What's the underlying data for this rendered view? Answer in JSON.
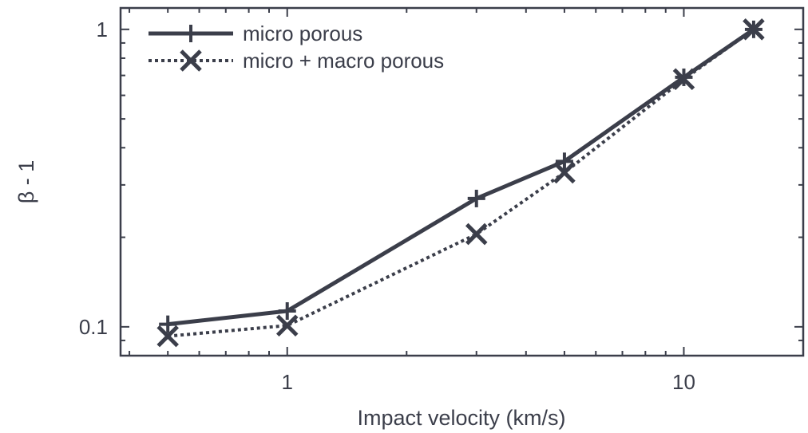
{
  "chart_data": {
    "type": "line",
    "xlabel": "Impact velocity (km/s)",
    "ylabel": "β - 1",
    "x_scale": "log",
    "y_scale": "log",
    "xlim": [
      0.38,
      20
    ],
    "ylim": [
      0.08,
      1.18
    ],
    "x_ticks": [
      {
        "value": 1,
        "label": "1"
      },
      {
        "value": 10,
        "label": "10"
      }
    ],
    "y_ticks": [
      {
        "value": 0.1,
        "label": "0.1"
      },
      {
        "value": 1,
        "label": "1"
      }
    ],
    "grid": false,
    "legend_position": "top-left",
    "series": [
      {
        "name": "micro porous",
        "marker": "plus",
        "line_style": "solid",
        "color": "#3b3e4a",
        "x": [
          0.5,
          1,
          3,
          5,
          10,
          15
        ],
        "y": [
          0.102,
          0.113,
          0.27,
          0.36,
          0.69,
          1.0
        ]
      },
      {
        "name": "micro + macro porous",
        "marker": "cross",
        "line_style": "dotted",
        "color": "#3b3e4a",
        "x": [
          0.5,
          1,
          3,
          5,
          10,
          15
        ],
        "y": [
          0.093,
          0.101,
          0.205,
          0.33,
          0.68,
          1.0
        ]
      }
    ]
  }
}
